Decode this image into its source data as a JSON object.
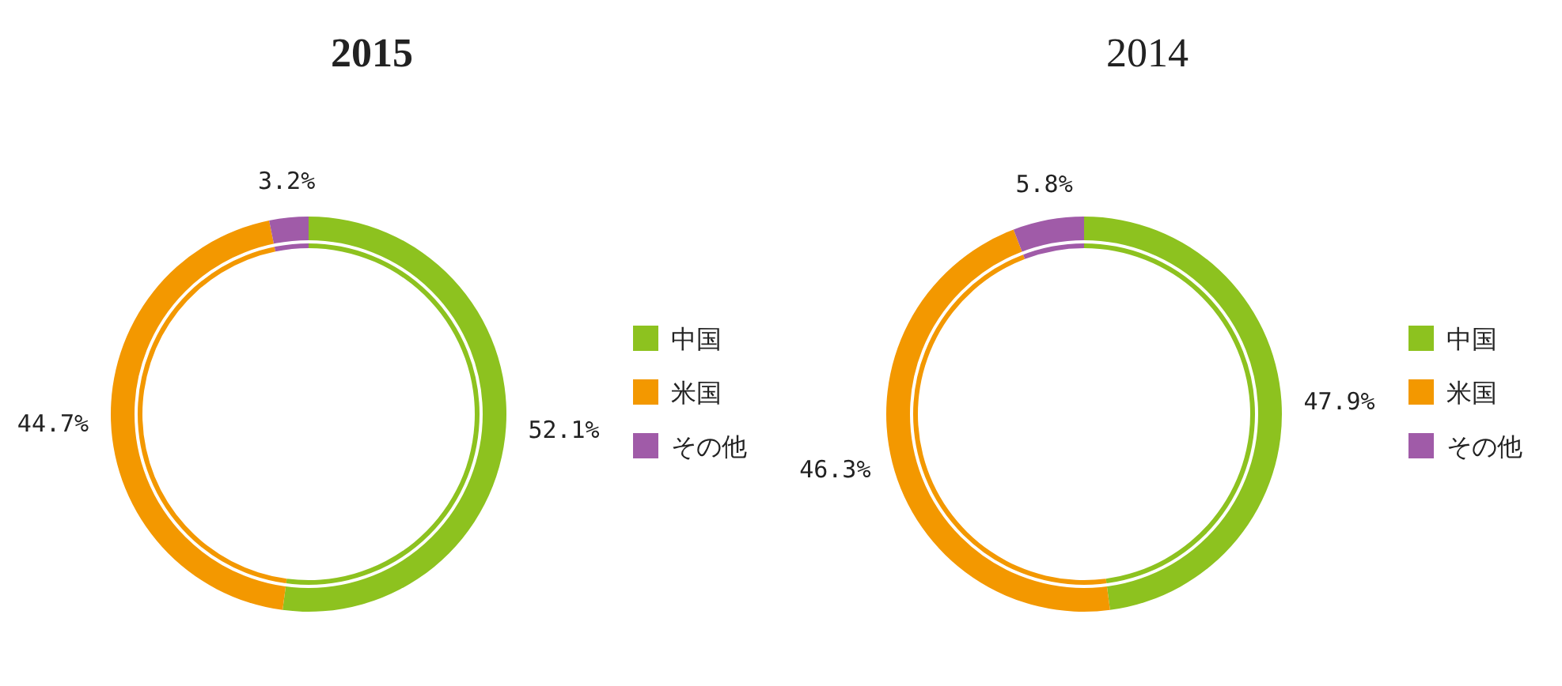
{
  "chart_data": [
    {
      "type": "donut",
      "title": "2015",
      "categories": [
        "中国",
        "米国",
        "その他"
      ],
      "values": [
        52.1,
        44.7,
        3.2
      ],
      "value_labels": [
        "52.1%",
        "44.7%",
        "3.2%"
      ],
      "colors": [
        "#8dc21f",
        "#f39800",
        "#a05ba8"
      ],
      "legend": "right"
    },
    {
      "type": "donut",
      "title": "2014",
      "categories": [
        "中国",
        "米国",
        "その他"
      ],
      "values": [
        47.9,
        46.3,
        5.8
      ],
      "value_labels": [
        "47.9%",
        "46.3%",
        "5.8%"
      ],
      "colors": [
        "#8dc21f",
        "#f39800",
        "#a05ba8"
      ],
      "legend": "right"
    }
  ]
}
